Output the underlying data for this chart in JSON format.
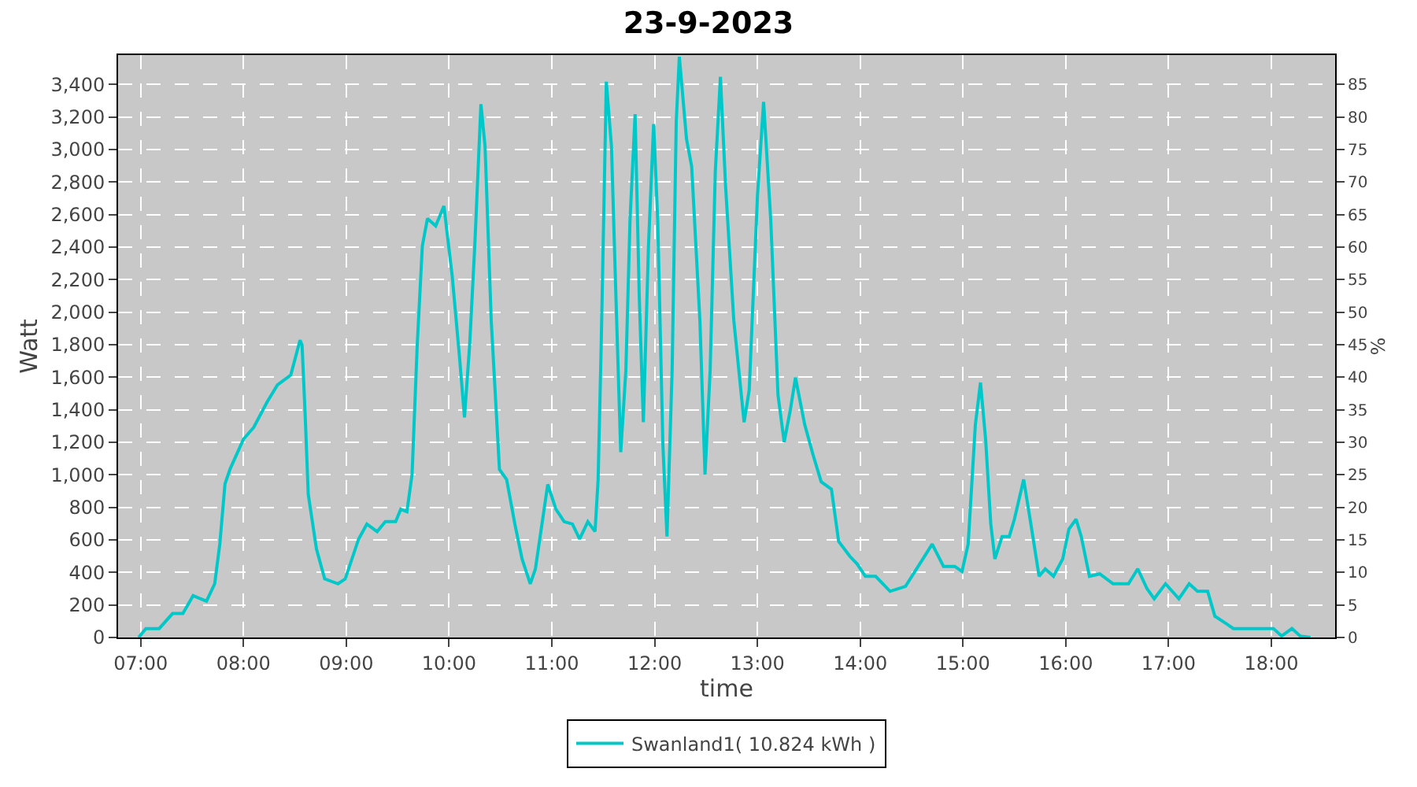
{
  "chart_data": {
    "type": "line",
    "title": "23-9-2023",
    "xlabel": "time",
    "ylabel": "Watt",
    "y2label": "%",
    "x": [
      6.98,
      7.05,
      7.18,
      7.31,
      7.41,
      7.51,
      7.64,
      7.72,
      7.77,
      7.82,
      7.87,
      8.0,
      8.1,
      8.23,
      8.33,
      8.46,
      8.55,
      8.57,
      8.6,
      8.63,
      8.71,
      8.79,
      8.92,
      8.99,
      9.12,
      9.2,
      9.3,
      9.38,
      9.48,
      9.53,
      9.59,
      9.64,
      9.69,
      9.74,
      9.79,
      9.87,
      9.95,
      10.03,
      10.1,
      10.15,
      10.2,
      10.25,
      10.31,
      10.35,
      10.41,
      10.49,
      10.56,
      10.64,
      10.71,
      10.79,
      10.84,
      10.96,
      11.04,
      11.12,
      11.2,
      11.27,
      11.35,
      11.42,
      11.45,
      11.48,
      11.53,
      11.58,
      11.62,
      11.67,
      11.72,
      11.76,
      11.81,
      11.85,
      11.89,
      11.94,
      11.99,
      12.03,
      12.08,
      12.12,
      12.17,
      12.21,
      12.24,
      12.31,
      12.36,
      12.44,
      12.49,
      12.54,
      12.59,
      12.64,
      12.69,
      12.77,
      12.87,
      12.92,
      13.0,
      13.06,
      13.13,
      13.2,
      13.26,
      13.32,
      13.37,
      13.46,
      13.54,
      13.62,
      13.72,
      13.79,
      13.9,
      13.97,
      14.05,
      14.15,
      14.29,
      14.44,
      14.61,
      14.7,
      14.81,
      14.92,
      14.99,
      15.05,
      15.12,
      15.17,
      15.22,
      15.27,
      15.31,
      15.38,
      15.45,
      15.5,
      15.59,
      15.66,
      15.74,
      15.8,
      15.88,
      15.97,
      16.03,
      16.1,
      16.15,
      16.23,
      16.33,
      16.46,
      16.61,
      16.7,
      16.79,
      16.86,
      16.97,
      17.1,
      17.2,
      17.28,
      17.38,
      17.45,
      17.56,
      17.63,
      18.02,
      18.1,
      18.2,
      18.28,
      18.38
    ],
    "series": [
      {
        "name": "Swanland1( 10.824 kWh )",
        "color": "#00c8c8",
        "values": [
          0,
          55,
          55,
          147,
          147,
          257,
          223,
          330,
          577,
          944,
          1036,
          1219,
          1292,
          1448,
          1552,
          1613,
          1827,
          1796,
          1369,
          880,
          544,
          360,
          330,
          360,
          605,
          697,
          651,
          712,
          712,
          788,
          773,
          1002,
          1796,
          2407,
          2575,
          2530,
          2652,
          2224,
          1735,
          1353,
          1796,
          2407,
          3278,
          3018,
          1949,
          1033,
          971,
          697,
          483,
          330,
          422,
          941,
          788,
          712,
          697,
          605,
          712,
          651,
          971,
          1796,
          3416,
          3018,
          2163,
          1139,
          1643,
          2560,
          3217,
          2101,
          1323,
          2407,
          3156,
          2560,
          1185,
          621,
          1643,
          3171,
          3570,
          3064,
          2896,
          1949,
          1002,
          1643,
          2866,
          3446,
          2774,
          1949,
          1323,
          1521,
          2713,
          3293,
          2560,
          1491,
          1201,
          1399,
          1597,
          1308,
          1125,
          957,
          911,
          590,
          498,
          452,
          376,
          376,
          284,
          314,
          483,
          574,
          437,
          437,
          406,
          574,
          1308,
          1567,
          1216,
          697,
          483,
          621,
          621,
          727,
          971,
          697,
          376,
          422,
          376,
          483,
          666,
          727,
          621,
          376,
          391,
          330,
          330,
          422,
          300,
          238,
          330,
          238,
          330,
          284,
          284,
          131,
          85,
          55,
          55,
          9,
          55,
          9,
          0
        ]
      }
    ],
    "xlim": [
      6.78,
      18.62
    ],
    "xticks": [
      {
        "value": 7,
        "label": "07:00"
      },
      {
        "value": 8,
        "label": "08:00"
      },
      {
        "value": 9,
        "label": "09:00"
      },
      {
        "value": 10,
        "label": "10:00"
      },
      {
        "value": 11,
        "label": "11:00"
      },
      {
        "value": 12,
        "label": "12:00"
      },
      {
        "value": 13,
        "label": "13:00"
      },
      {
        "value": 14,
        "label": "14:00"
      },
      {
        "value": 15,
        "label": "15:00"
      },
      {
        "value": 16,
        "label": "16:00"
      },
      {
        "value": 17,
        "label": "17:00"
      },
      {
        "value": 18,
        "label": "18:00"
      }
    ],
    "ylim": [
      0,
      3580
    ],
    "yticks": [
      0,
      200,
      400,
      600,
      800,
      {
        "value": 1000,
        "label": "1,000"
      },
      {
        "value": 1200,
        "label": "1,200"
      },
      {
        "value": 1400,
        "label": "1,400"
      },
      {
        "value": 1600,
        "label": "1,600"
      },
      {
        "value": 1800,
        "label": "1,800"
      },
      {
        "value": 2000,
        "label": "2,000"
      },
      {
        "value": 2200,
        "label": "2,200"
      },
      {
        "value": 2400,
        "label": "2,400"
      },
      {
        "value": 2600,
        "label": "2,600"
      },
      {
        "value": 2800,
        "label": "2,800"
      },
      {
        "value": 3000,
        "label": "3,000"
      },
      {
        "value": 3200,
        "label": "3,200"
      },
      {
        "value": 3400,
        "label": "3,400"
      }
    ],
    "y2lim": [
      0,
      89.5
    ],
    "y2ticks": [
      0,
      5,
      10,
      15,
      20,
      25,
      30,
      35,
      40,
      45,
      50,
      55,
      60,
      65,
      70,
      75,
      80,
      85
    ],
    "grid": true,
    "legend": "bottom",
    "marker": "none",
    "line_style": "solid"
  }
}
